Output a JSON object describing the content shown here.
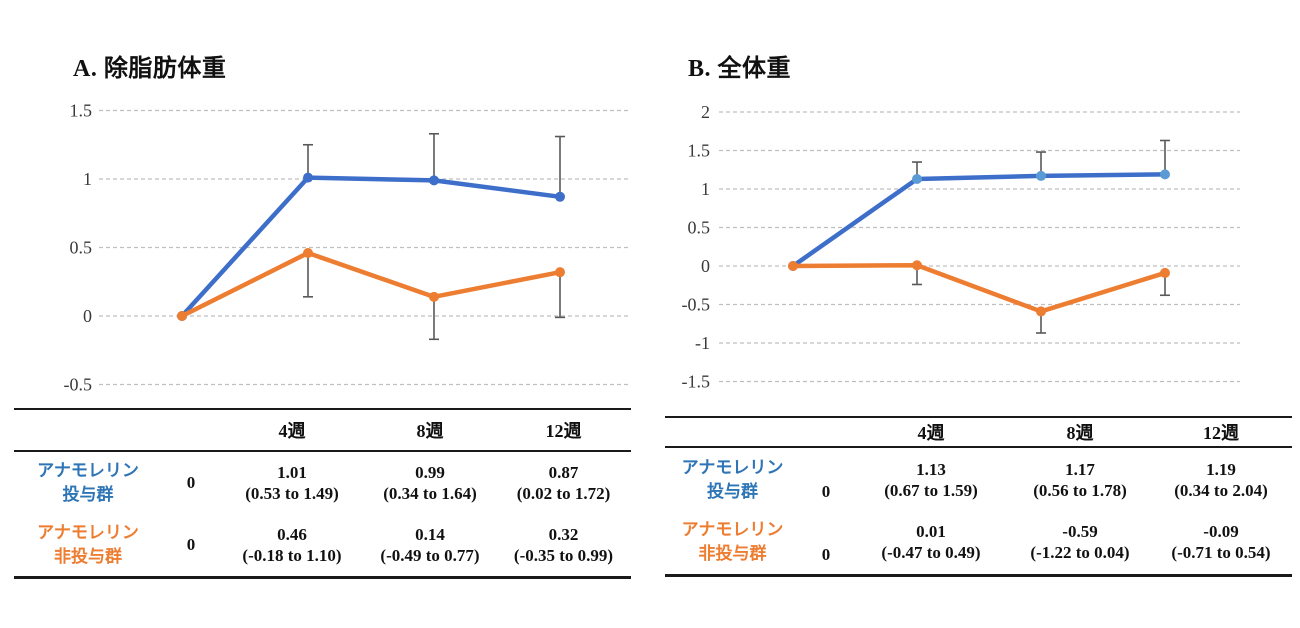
{
  "page": {
    "background": "#ffffff"
  },
  "palette": {
    "blue_line": "#3D6EC9",
    "blue_label": "#2E75B6",
    "light_blue_marker": "#5B9BD5",
    "orange": "#ED7D31",
    "gridline": "#BFBFBF",
    "error_bar": "#595959",
    "axis_text": "#3a3a3a",
    "table_border": "#1a1a1a"
  },
  "chart_data": [
    {
      "id": "A",
      "type": "line",
      "title": "A. 除脂肪体重",
      "x_categories": [
        "0",
        "4週",
        "8週",
        "12週"
      ],
      "ylim": [
        -0.5,
        1.5
      ],
      "grid": true,
      "yticks": [
        {
          "v": 1.5,
          "label": "1.5"
        },
        {
          "v": 1,
          "label": "1"
        },
        {
          "v": 0.5,
          "label": "0.5"
        },
        {
          "v": 0,
          "label": "0"
        },
        {
          "v": -0.5,
          "label": "-0.5"
        }
      ],
      "series": [
        {
          "name": "アナモレリン投与群",
          "color": "#3D6EC9",
          "marker_color": "#3D6EC9",
          "values": [
            0,
            1.01,
            0.99,
            0.87
          ],
          "error_upper": [
            null,
            1.25,
            1.33,
            1.31
          ],
          "error_lower": [
            null,
            null,
            null,
            null
          ]
        },
        {
          "name": "アナモレリン非投与群",
          "color": "#ED7D31",
          "marker_color": "#ED7D31",
          "values": [
            0,
            0.46,
            0.14,
            0.32
          ],
          "error_upper": [
            null,
            null,
            null,
            null
          ],
          "error_lower": [
            null,
            0.14,
            -0.17,
            -0.01
          ]
        }
      ],
      "table": {
        "week_headers": [
          "4週",
          "8週",
          "12週"
        ],
        "rows": [
          {
            "label_line1": "アナモレリン",
            "label_line2": "投与群",
            "label_color": "#2E75B6",
            "baseline": "0",
            "cells": [
              {
                "mean": "1.01",
                "ci": "(0.53 to 1.49)"
              },
              {
                "mean": "0.99",
                "ci": "(0.34 to 1.64)"
              },
              {
                "mean": "0.87",
                "ci": "(0.02 to 1.72)"
              }
            ]
          },
          {
            "label_line1": "アナモレリン",
            "label_line2": "非投与群",
            "label_color": "#ED7D31",
            "baseline": "0",
            "cells": [
              {
                "mean": "0.46",
                "ci": "(-0.18 to 1.10)"
              },
              {
                "mean": "0.14",
                "ci": "(-0.49 to 0.77)"
              },
              {
                "mean": "0.32",
                "ci": "(-0.35 to 0.99)"
              }
            ]
          }
        ]
      }
    },
    {
      "id": "B",
      "type": "line",
      "title": "B. 全体重",
      "x_categories": [
        "0",
        "4週",
        "8週",
        "12週"
      ],
      "ylim": [
        -1.5,
        2
      ],
      "grid": true,
      "yticks": [
        {
          "v": 2,
          "label": "2"
        },
        {
          "v": 1.5,
          "label": "1.5"
        },
        {
          "v": 1,
          "label": "1"
        },
        {
          "v": 0.5,
          "label": "0.5"
        },
        {
          "v": 0,
          "label": "0"
        },
        {
          "v": -0.5,
          "label": "-0.5"
        },
        {
          "v": -1,
          "label": "-1"
        },
        {
          "v": -1.5,
          "label": "-1.5"
        }
      ],
      "series": [
        {
          "name": "アナモレリン投与群",
          "color": "#3D6EC9",
          "marker_color": "#5B9BD5",
          "values": [
            0,
            1.13,
            1.17,
            1.19
          ],
          "error_upper": [
            null,
            1.35,
            1.48,
            1.63
          ],
          "error_lower": [
            null,
            null,
            null,
            null
          ]
        },
        {
          "name": "アナモレリン非投与群",
          "color": "#ED7D31",
          "marker_color": "#ED7D31",
          "values": [
            0,
            0.01,
            -0.59,
            -0.09
          ],
          "error_upper": [
            null,
            null,
            null,
            null
          ],
          "error_lower": [
            null,
            -0.24,
            -0.87,
            -0.38
          ]
        }
      ],
      "table": {
        "week_headers": [
          "4週",
          "8週",
          "12週"
        ],
        "rows": [
          {
            "label_line1": "アナモレリン",
            "label_line2": "投与群",
            "label_color": "#2E75B6",
            "baseline": "0",
            "cells": [
              {
                "mean": "1.13",
                "ci": "(0.67 to 1.59)"
              },
              {
                "mean": "1.17",
                "ci": "(0.56 to 1.78)"
              },
              {
                "mean": "1.19",
                "ci": "(0.34 to 2.04)"
              }
            ]
          },
          {
            "label_line1": "アナモレリン",
            "label_line2": "非投与群",
            "label_color": "#ED7D31",
            "baseline": "0",
            "cells": [
              {
                "mean": "0.01",
                "ci": "(-0.47 to 0.49)"
              },
              {
                "mean": "-0.59",
                "ci": "(-1.22 to 0.04)"
              },
              {
                "mean": "-0.09",
                "ci": "(-0.71 to 0.54)"
              }
            ]
          }
        ]
      }
    }
  ]
}
